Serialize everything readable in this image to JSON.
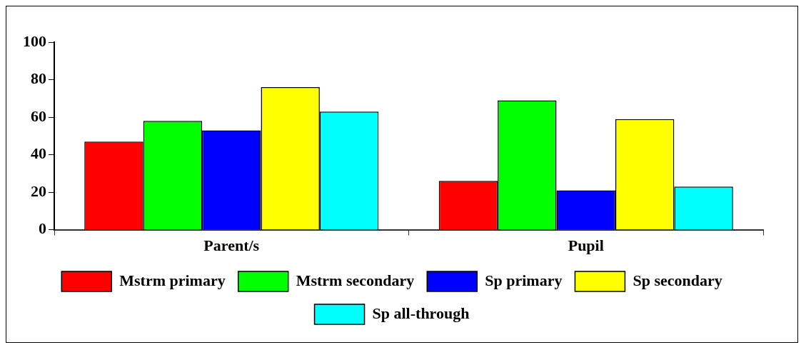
{
  "chart_data": {
    "type": "bar",
    "categories": [
      "Parent/s",
      "Pupil"
    ],
    "series": [
      {
        "name": "Mstrm primary",
        "color": "#ff0000",
        "values": [
          47,
          26
        ]
      },
      {
        "name": "Mstrm secondary",
        "color": "#00ff00",
        "values": [
          58,
          69
        ]
      },
      {
        "name": "Sp primary",
        "color": "#0000ff",
        "values": [
          53,
          21
        ]
      },
      {
        "name": "Sp secondary",
        "color": "#ffff00",
        "values": [
          76,
          59
        ]
      },
      {
        "name": "Sp all-through",
        "color": "#00ffff",
        "values": [
          63,
          23
        ]
      }
    ],
    "ylim": [
      0,
      100
    ],
    "yticks": [
      0,
      20,
      40,
      60,
      80,
      100
    ],
    "grid": false,
    "legend": "bottom"
  }
}
